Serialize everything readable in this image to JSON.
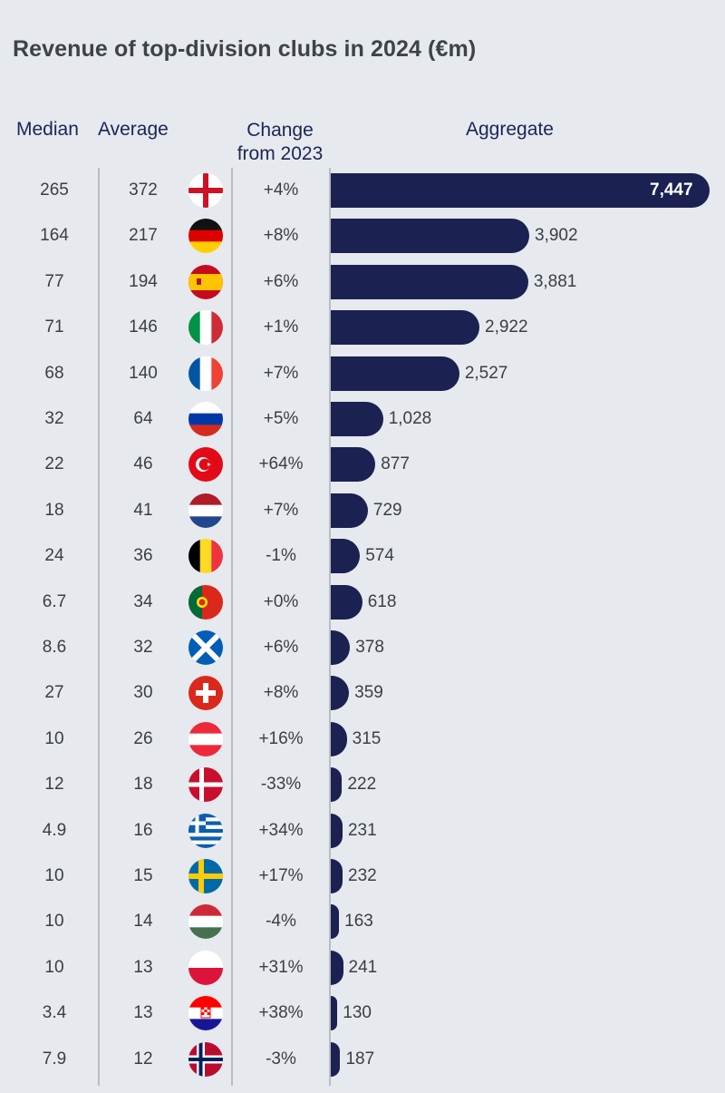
{
  "title": "Revenue of top-division clubs in 2024 (€m)",
  "headers": {
    "median": "Median",
    "average": "Average",
    "change_line1": "Change",
    "change_line2": "from 2023",
    "aggregate": "Aggregate"
  },
  "colors": {
    "bar": "#1b2151",
    "text": "#3a3f45",
    "header": "#1b2555"
  },
  "chart_data": {
    "type": "bar",
    "orientation": "horizontal",
    "title": "Revenue of top-division clubs in 2024 (€m)",
    "series_label": "Aggregate",
    "xlim": [
      0,
      7447
    ],
    "rows": [
      {
        "flag": "england",
        "median": "265",
        "average": "372",
        "change": "+4%",
        "aggregate": 7447,
        "aggregate_label": "7,447"
      },
      {
        "flag": "germany",
        "median": "164",
        "average": "217",
        "change": "+8%",
        "aggregate": 3902,
        "aggregate_label": "3,902"
      },
      {
        "flag": "spain",
        "median": "77",
        "average": "194",
        "change": "+6%",
        "aggregate": 3881,
        "aggregate_label": "3,881"
      },
      {
        "flag": "italy",
        "median": "71",
        "average": "146",
        "change": "+1%",
        "aggregate": 2922,
        "aggregate_label": "2,922"
      },
      {
        "flag": "france",
        "median": "68",
        "average": "140",
        "change": "+7%",
        "aggregate": 2527,
        "aggregate_label": "2,527"
      },
      {
        "flag": "russia",
        "median": "32",
        "average": "64",
        "change": "+5%",
        "aggregate": 1028,
        "aggregate_label": "1,028"
      },
      {
        "flag": "turkey",
        "median": "22",
        "average": "46",
        "change": "+64%",
        "aggregate": 877,
        "aggregate_label": "877"
      },
      {
        "flag": "netherlands",
        "median": "18",
        "average": "41",
        "change": "+7%",
        "aggregate": 729,
        "aggregate_label": "729"
      },
      {
        "flag": "belgium",
        "median": "24",
        "average": "36",
        "change": "-1%",
        "aggregate": 574,
        "aggregate_label": "574"
      },
      {
        "flag": "portugal",
        "median": "6.7",
        "average": "34",
        "change": "+0%",
        "aggregate": 618,
        "aggregate_label": "618"
      },
      {
        "flag": "scotland",
        "median": "8.6",
        "average": "32",
        "change": "+6%",
        "aggregate": 378,
        "aggregate_label": "378"
      },
      {
        "flag": "switzerland",
        "median": "27",
        "average": "30",
        "change": "+8%",
        "aggregate": 359,
        "aggregate_label": "359"
      },
      {
        "flag": "austria",
        "median": "10",
        "average": "26",
        "change": "+16%",
        "aggregate": 315,
        "aggregate_label": "315"
      },
      {
        "flag": "denmark",
        "median": "12",
        "average": "18",
        "change": "-33%",
        "aggregate": 222,
        "aggregate_label": "222"
      },
      {
        "flag": "greece",
        "median": "4.9",
        "average": "16",
        "change": "+34%",
        "aggregate": 231,
        "aggregate_label": "231"
      },
      {
        "flag": "sweden",
        "median": "10",
        "average": "15",
        "change": "+17%",
        "aggregate": 232,
        "aggregate_label": "232"
      },
      {
        "flag": "hungary",
        "median": "10",
        "average": "14",
        "change": "-4%",
        "aggregate": 163,
        "aggregate_label": "163"
      },
      {
        "flag": "poland",
        "median": "10",
        "average": "13",
        "change": "+31%",
        "aggregate": 241,
        "aggregate_label": "241"
      },
      {
        "flag": "croatia",
        "median": "3.4",
        "average": "13",
        "change": "+38%",
        "aggregate": 130,
        "aggregate_label": "130"
      },
      {
        "flag": "norway",
        "median": "7.9",
        "average": "12",
        "change": "-3%",
        "aggregate": 187,
        "aggregate_label": "187"
      }
    ]
  }
}
